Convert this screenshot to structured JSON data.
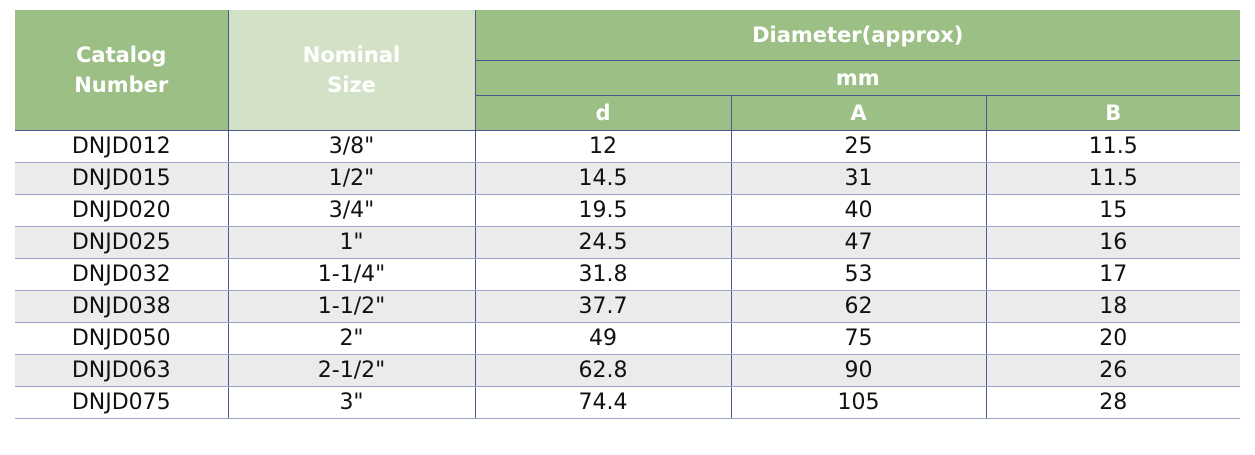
{
  "table": {
    "columns": [
      "Catalog Number",
      "Nominal Size"
    ],
    "group": "Diameter(approx)",
    "unit": "mm",
    "sub_columns": [
      "d",
      "A",
      "B"
    ],
    "rows": [
      [
        "DNJD012",
        "3/8\"",
        "12",
        "25",
        "11.5"
      ],
      [
        "DNJD015",
        "1/2\"",
        "14.5",
        "31",
        "11.5"
      ],
      [
        "DNJD020",
        "3/4\"",
        "19.5",
        "40",
        "15"
      ],
      [
        "DNJD025",
        "1\"",
        "24.5",
        "47",
        "16"
      ],
      [
        "DNJD032",
        "1-1/4\"",
        "31.8",
        "53",
        "17"
      ],
      [
        "DNJD038",
        "1-1/2\"",
        "37.7",
        "62",
        "18"
      ],
      [
        "DNJD050",
        "2\"",
        "49",
        "75",
        "20"
      ],
      [
        "DNJD063",
        "2-1/2\"",
        "62.8",
        "90",
        "26"
      ],
      [
        "DNJD075",
        "3\"",
        "74.4",
        "105",
        "28"
      ]
    ]
  }
}
